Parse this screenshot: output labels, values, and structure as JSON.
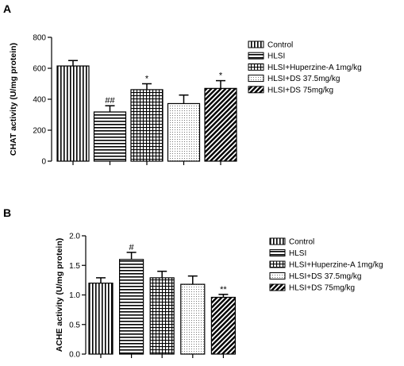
{
  "panels": [
    {
      "label": "A",
      "chart_data": {
        "type": "bar",
        "ylabel": "CHAT activity (U/mg protein)",
        "ylim": [
          0,
          800
        ],
        "yticks": [
          0,
          200,
          400,
          600,
          800
        ],
        "categories": [
          "Control",
          "HLSI",
          "HLSI+Huperzine-A 1mg/kg",
          "HLSI+DS 37.5mg/kg",
          "HLSI+DS 75mg/kg"
        ],
        "values": [
          615,
          318,
          462,
          372,
          470
        ],
        "errors": [
          35,
          40,
          38,
          55,
          50
        ],
        "annotations": [
          "",
          "##",
          "*",
          "",
          "*"
        ],
        "patterns": [
          "vertical",
          "horizontal",
          "grid",
          "dots",
          "diagonal"
        ],
        "legend_position": "right",
        "color": "#000000"
      }
    },
    {
      "label": "B",
      "chart_data": {
        "type": "bar",
        "ylabel": "ACHE activity (U/mg protein)",
        "ylim": [
          0,
          2.0
        ],
        "yticks": [
          "0.0",
          "0.5",
          "1.0",
          "1.5",
          "2.0"
        ],
        "categories": [
          "Control",
          "HLSI",
          "HLSI+Huperzine-A 1mg/kg",
          "HLSI+DS 37.5mg/kg",
          "HLSI+DS 75mg/kg"
        ],
        "values": [
          1.2,
          1.6,
          1.29,
          1.18,
          0.96
        ],
        "errors": [
          0.09,
          0.12,
          0.11,
          0.14,
          0.05
        ],
        "annotations": [
          "",
          "#",
          "",
          "",
          "**"
        ],
        "patterns": [
          "vertical",
          "horizontal",
          "grid",
          "dots",
          "diagonal"
        ],
        "legend_position": "right",
        "color": "#000000"
      }
    }
  ]
}
